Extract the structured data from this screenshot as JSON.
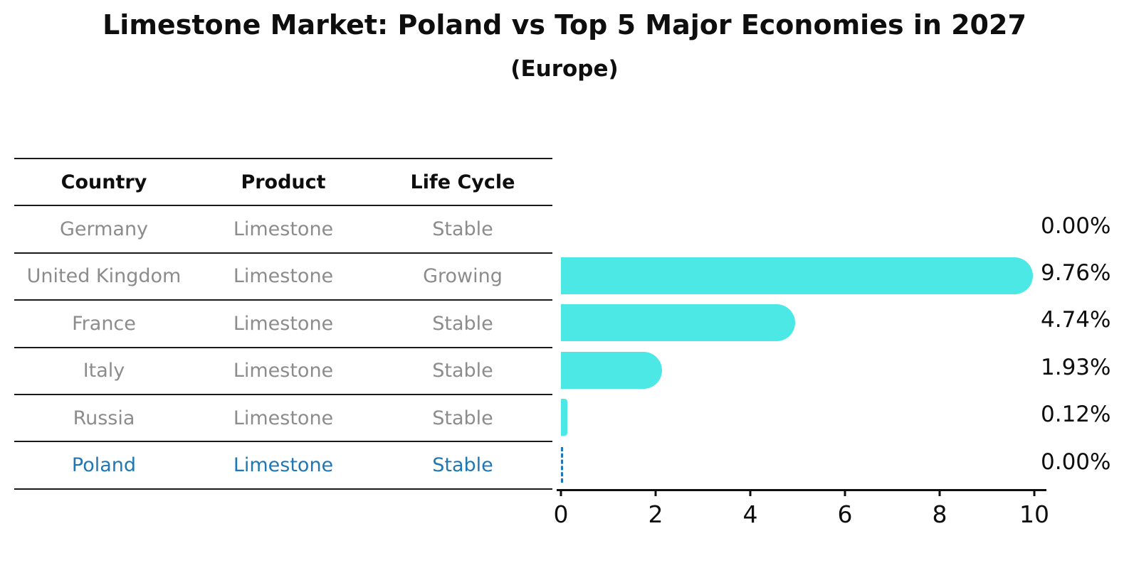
{
  "title": "Limestone Market: Poland vs Top 5 Major Economies in 2027",
  "subtitle": "(Europe)",
  "table": {
    "headers": [
      "Country",
      "Product",
      "Life Cycle"
    ],
    "rows": [
      {
        "country": "Germany",
        "product": "Limestone",
        "life_cycle": "Stable",
        "highlight": false
      },
      {
        "country": "United Kingdom",
        "product": "Limestone",
        "life_cycle": "Growing",
        "highlight": false
      },
      {
        "country": "France",
        "product": "Limestone",
        "life_cycle": "Stable",
        "highlight": false
      },
      {
        "country": "Italy",
        "product": "Limestone",
        "life_cycle": "Stable",
        "highlight": false
      },
      {
        "country": "Russia",
        "product": "Limestone",
        "life_cycle": "Stable",
        "highlight": false
      },
      {
        "country": "Poland",
        "product": "Limestone",
        "life_cycle": "Stable",
        "highlight": true
      }
    ]
  },
  "chart_data": {
    "type": "bar",
    "orientation": "horizontal",
    "title": "Limestone Market: Poland vs Top 5 Major Economies in 2027 (Europe)",
    "categories": [
      "Germany",
      "United Kingdom",
      "France",
      "Italy",
      "Russia",
      "Poland"
    ],
    "values": [
      0.0,
      9.76,
      4.74,
      1.93,
      0.12,
      0.0
    ],
    "value_labels": [
      "0.00%",
      "9.76%",
      "4.74%",
      "1.93%",
      "0.12%",
      "0.00%"
    ],
    "xlabel": "",
    "ylabel": "",
    "xlim": [
      0,
      10
    ],
    "xticks": [
      "0",
      "2",
      "4",
      "6",
      "8",
      "10"
    ],
    "grid": false,
    "legend": false,
    "bar_color": "#4be8e6",
    "highlight_color": "#1f77b4",
    "highlight_index": 5,
    "highlight_style": "dashed-outline-zero-bar"
  }
}
